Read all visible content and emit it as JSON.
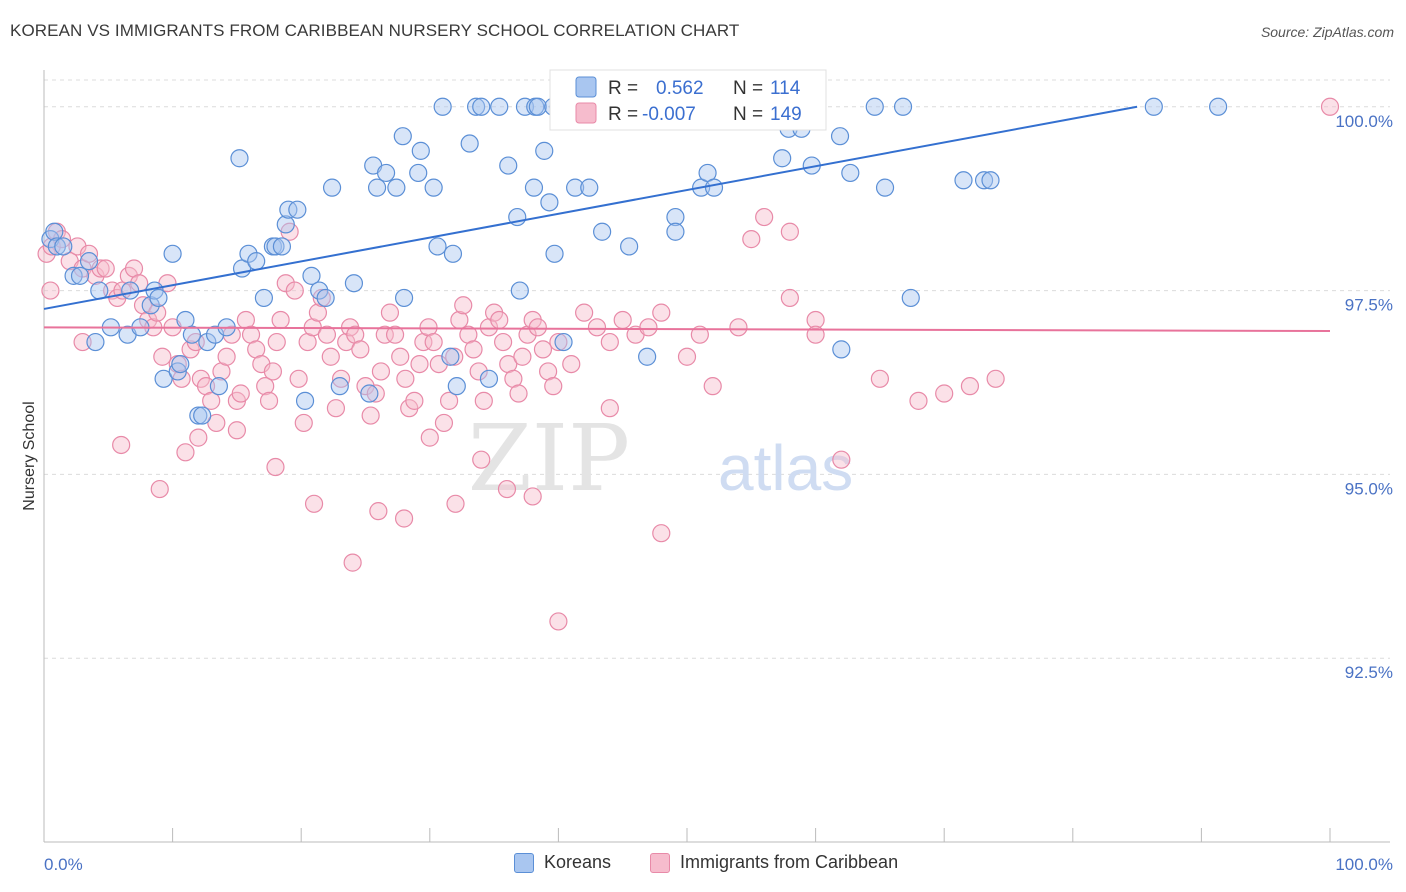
{
  "title": "KOREAN VS IMMIGRANTS FROM CARIBBEAN NURSERY SCHOOL CORRELATION CHART",
  "source": "Source: ZipAtlas.com",
  "watermark": {
    "zip": "ZIP",
    "atlas": "atlas"
  },
  "colors": {
    "blue_fill": "#a9c6f0",
    "blue_stroke": "#5b8fd6",
    "blue_line": "#3470d0",
    "pink_fill": "#f6bccd",
    "pink_stroke": "#e88aa8",
    "pink_line": "#e8739b",
    "tick_text": "#4a72c4",
    "grid": "#dcdcdc"
  },
  "legend_stats": {
    "r_label": "R =",
    "n_label": "N =",
    "koreans": {
      "r": "0.562",
      "n": "114"
    },
    "caribbean": {
      "r": "-0.007",
      "n": "149"
    }
  },
  "chart_data": {
    "type": "scatter",
    "xlabel": "",
    "ylabel": "Nursery School",
    "xlim": [
      0,
      100
    ],
    "ylim": [
      90.0,
      100.5
    ],
    "x_tick_labels": [
      "0.0%",
      "100.0%"
    ],
    "y_ticks": [
      92.5,
      95.0,
      97.5,
      100.0
    ],
    "y_tick_labels": [
      "92.5%",
      "95.0%",
      "97.5%",
      "100.0%"
    ],
    "grid": true,
    "legend_position": "bottom",
    "series": [
      {
        "name": "Koreans",
        "trend": {
          "x": [
            0,
            85
          ],
          "y": [
            97.25,
            100.0
          ]
        },
        "points": [
          [
            0.5,
            98.2
          ],
          [
            0.8,
            98.3
          ],
          [
            1.0,
            98.1
          ],
          [
            1.5,
            98.1
          ],
          [
            2.3,
            97.7
          ],
          [
            2.8,
            97.7
          ],
          [
            3.5,
            97.9
          ],
          [
            4.0,
            96.8
          ],
          [
            4.3,
            97.5
          ],
          [
            5.2,
            97.0
          ],
          [
            6.5,
            96.9
          ],
          [
            6.7,
            97.5
          ],
          [
            7.5,
            97.0
          ],
          [
            8.3,
            97.3
          ],
          [
            8.6,
            97.5
          ],
          [
            8.9,
            97.4
          ],
          [
            9.3,
            96.3
          ],
          [
            10.0,
            98.0
          ],
          [
            10.4,
            96.4
          ],
          [
            10.6,
            96.5
          ],
          [
            11.0,
            97.1
          ],
          [
            11.5,
            96.9
          ],
          [
            12.0,
            95.8
          ],
          [
            12.3,
            95.8
          ],
          [
            12.7,
            96.8
          ],
          [
            13.3,
            96.9
          ],
          [
            13.6,
            96.2
          ],
          [
            14.2,
            97.0
          ],
          [
            15.2,
            99.3
          ],
          [
            15.4,
            97.8
          ],
          [
            15.9,
            98.0
          ],
          [
            16.5,
            97.9
          ],
          [
            17.1,
            97.4
          ],
          [
            17.8,
            98.1
          ],
          [
            18.0,
            98.1
          ],
          [
            18.5,
            98.1
          ],
          [
            18.8,
            98.4
          ],
          [
            19.0,
            98.6
          ],
          [
            19.7,
            98.6
          ],
          [
            20.3,
            96.0
          ],
          [
            20.8,
            97.7
          ],
          [
            21.4,
            97.5
          ],
          [
            21.9,
            97.4
          ],
          [
            22.4,
            98.9
          ],
          [
            23.0,
            96.2
          ],
          [
            24.1,
            97.6
          ],
          [
            25.3,
            96.1
          ],
          [
            25.6,
            99.2
          ],
          [
            25.9,
            98.9
          ],
          [
            26.6,
            99.1
          ],
          [
            27.4,
            98.9
          ],
          [
            27.9,
            99.6
          ],
          [
            28.0,
            97.4
          ],
          [
            29.1,
            99.1
          ],
          [
            29.3,
            99.4
          ],
          [
            30.3,
            98.9
          ],
          [
            30.6,
            98.1
          ],
          [
            31.6,
            96.6
          ],
          [
            31.8,
            98.0
          ],
          [
            32.1,
            96.2
          ],
          [
            31.0,
            100.0
          ],
          [
            33.1,
            99.5
          ],
          [
            33.6,
            100.0
          ],
          [
            34.0,
            100.0
          ],
          [
            34.6,
            96.3
          ],
          [
            35.4,
            100.0
          ],
          [
            36.1,
            99.2
          ],
          [
            36.8,
            98.5
          ],
          [
            37.0,
            97.5
          ],
          [
            37.4,
            100.0
          ],
          [
            38.1,
            98.9
          ],
          [
            38.2,
            100.0
          ],
          [
            38.4,
            100.0
          ],
          [
            38.9,
            99.4
          ],
          [
            39.3,
            98.7
          ],
          [
            39.6,
            100.0
          ],
          [
            39.7,
            98.0
          ],
          [
            40.0,
            100.0
          ],
          [
            40.3,
            100.0
          ],
          [
            40.4,
            96.8
          ],
          [
            41.3,
            98.9
          ],
          [
            42.4,
            98.9
          ],
          [
            43.4,
            98.3
          ],
          [
            45.5,
            98.1
          ],
          [
            46.9,
            96.6
          ],
          [
            47.4,
            100.0
          ],
          [
            48.2,
            100.0
          ],
          [
            49.1,
            98.5
          ],
          [
            49.1,
            98.3
          ],
          [
            50.4,
            99.9
          ],
          [
            51.1,
            98.9
          ],
          [
            51.6,
            99.1
          ],
          [
            52.1,
            98.9
          ],
          [
            53.3,
            100.0
          ],
          [
            54.3,
            100.0
          ],
          [
            55.8,
            100.0
          ],
          [
            57.4,
            99.3
          ],
          [
            57.7,
            100.0
          ],
          [
            57.9,
            99.7
          ],
          [
            58.3,
            100.0
          ],
          [
            58.9,
            99.7
          ],
          [
            59.7,
            99.2
          ],
          [
            61.9,
            99.6
          ],
          [
            62.0,
            96.7
          ],
          [
            62.7,
            99.1
          ],
          [
            64.6,
            100.0
          ],
          [
            65.4,
            98.9
          ],
          [
            66.8,
            100.0
          ],
          [
            67.4,
            97.4
          ],
          [
            71.5,
            99.0
          ],
          [
            73.1,
            99.0
          ],
          [
            73.6,
            99.0
          ],
          [
            86.3,
            100.0
          ],
          [
            91.3,
            100.0
          ]
        ]
      },
      {
        "name": "Immigrants from Caribbean",
        "trend": {
          "x": [
            0,
            100
          ],
          "y": [
            97.0,
            96.95
          ]
        },
        "points": [
          [
            0.2,
            98.0
          ],
          [
            0.6,
            98.1
          ],
          [
            1.0,
            98.3
          ],
          [
            1.4,
            98.2
          ],
          [
            2.0,
            97.9
          ],
          [
            2.6,
            98.1
          ],
          [
            3.0,
            97.8
          ],
          [
            3.5,
            98.0
          ],
          [
            4.0,
            97.7
          ],
          [
            4.4,
            97.8
          ],
          [
            4.8,
            97.8
          ],
          [
            5.3,
            97.5
          ],
          [
            5.7,
            97.4
          ],
          [
            6.1,
            97.5
          ],
          [
            6.6,
            97.7
          ],
          [
            7.0,
            97.8
          ],
          [
            7.4,
            97.6
          ],
          [
            7.7,
            97.3
          ],
          [
            8.1,
            97.1
          ],
          [
            8.5,
            97.0
          ],
          [
            8.8,
            97.2
          ],
          [
            9.2,
            96.6
          ],
          [
            9.6,
            97.6
          ],
          [
            10.0,
            97.0
          ],
          [
            10.4,
            96.5
          ],
          [
            10.7,
            96.3
          ],
          [
            11.0,
            95.3
          ],
          [
            11.4,
            96.7
          ],
          [
            11.8,
            96.8
          ],
          [
            12.2,
            96.3
          ],
          [
            12.6,
            96.2
          ],
          [
            13.0,
            96.0
          ],
          [
            13.4,
            95.7
          ],
          [
            13.8,
            96.4
          ],
          [
            14.2,
            96.6
          ],
          [
            14.6,
            96.9
          ],
          [
            15.0,
            96.0
          ],
          [
            15.3,
            96.1
          ],
          [
            15.7,
            97.1
          ],
          [
            16.1,
            96.9
          ],
          [
            16.5,
            96.7
          ],
          [
            16.9,
            96.5
          ],
          [
            17.2,
            96.2
          ],
          [
            17.5,
            96.0
          ],
          [
            17.8,
            96.4
          ],
          [
            18.1,
            96.8
          ],
          [
            18.4,
            97.1
          ],
          [
            18.8,
            97.6
          ],
          [
            19.1,
            98.3
          ],
          [
            19.5,
            97.5
          ],
          [
            19.8,
            96.3
          ],
          [
            20.2,
            95.7
          ],
          [
            20.5,
            96.8
          ],
          [
            20.9,
            97.0
          ],
          [
            21.3,
            97.2
          ],
          [
            21.6,
            97.4
          ],
          [
            22.0,
            96.9
          ],
          [
            22.3,
            96.6
          ],
          [
            22.7,
            95.9
          ],
          [
            23.1,
            96.3
          ],
          [
            23.5,
            96.8
          ],
          [
            23.8,
            97.0
          ],
          [
            24.2,
            96.9
          ],
          [
            24.6,
            96.7
          ],
          [
            25.0,
            96.2
          ],
          [
            25.4,
            95.8
          ],
          [
            25.8,
            96.1
          ],
          [
            26.2,
            96.4
          ],
          [
            26.5,
            96.9
          ],
          [
            26.9,
            97.2
          ],
          [
            27.3,
            96.9
          ],
          [
            27.7,
            96.6
          ],
          [
            28.1,
            96.3
          ],
          [
            28.4,
            95.9
          ],
          [
            28.8,
            96.0
          ],
          [
            29.2,
            96.5
          ],
          [
            29.5,
            96.8
          ],
          [
            29.9,
            97.0
          ],
          [
            30.3,
            96.8
          ],
          [
            30.7,
            96.5
          ],
          [
            31.1,
            95.7
          ],
          [
            31.5,
            96.0
          ],
          [
            31.9,
            96.6
          ],
          [
            32.3,
            97.1
          ],
          [
            32.6,
            97.3
          ],
          [
            33.0,
            96.9
          ],
          [
            33.4,
            96.7
          ],
          [
            33.8,
            96.4
          ],
          [
            34.2,
            96.0
          ],
          [
            34.6,
            97.0
          ],
          [
            35.0,
            97.2
          ],
          [
            35.4,
            97.1
          ],
          [
            35.7,
            96.8
          ],
          [
            36.1,
            96.5
          ],
          [
            36.5,
            96.3
          ],
          [
            36.9,
            96.1
          ],
          [
            37.2,
            96.6
          ],
          [
            37.6,
            96.9
          ],
          [
            38.0,
            97.1
          ],
          [
            38.4,
            97.0
          ],
          [
            38.8,
            96.7
          ],
          [
            39.2,
            96.4
          ],
          [
            39.6,
            96.2
          ],
          [
            40.0,
            96.8
          ],
          [
            41.0,
            96.5
          ],
          [
            42.0,
            97.2
          ],
          [
            43.0,
            97.0
          ],
          [
            44.0,
            96.8
          ],
          [
            45.0,
            97.1
          ],
          [
            46.0,
            96.9
          ],
          [
            47.0,
            97.0
          ],
          [
            48.0,
            97.2
          ],
          [
            50.0,
            96.6
          ],
          [
            52.0,
            96.2
          ],
          [
            54.0,
            97.0
          ],
          [
            56.0,
            98.5
          ],
          [
            58.0,
            97.4
          ],
          [
            60.0,
            97.1
          ],
          [
            62.0,
            95.2
          ],
          [
            65.0,
            96.3
          ],
          [
            68.0,
            96.0
          ],
          [
            70.0,
            96.1
          ],
          [
            72.0,
            96.2
          ],
          [
            74.0,
            96.3
          ],
          [
            0.5,
            97.5
          ],
          [
            3.0,
            96.8
          ],
          [
            6.0,
            95.4
          ],
          [
            9.0,
            94.8
          ],
          [
            12.0,
            95.5
          ],
          [
            15.0,
            95.6
          ],
          [
            18.0,
            95.1
          ],
          [
            21.0,
            94.6
          ],
          [
            24.0,
            93.8
          ],
          [
            26.0,
            94.5
          ],
          [
            28.0,
            94.4
          ],
          [
            30.0,
            95.5
          ],
          [
            32.0,
            94.6
          ],
          [
            34.0,
            95.2
          ],
          [
            36.0,
            94.8
          ],
          [
            38.0,
            94.7
          ],
          [
            40.0,
            93.0
          ],
          [
            44.0,
            95.9
          ],
          [
            48.0,
            94.2
          ],
          [
            51.0,
            96.9
          ],
          [
            55.0,
            98.2
          ],
          [
            58.0,
            98.3
          ],
          [
            60.0,
            96.9
          ],
          [
            100.0,
            100.0
          ]
        ]
      }
    ]
  },
  "bottom_legend": [
    {
      "label": "Koreans"
    },
    {
      "label": "Immigrants from Caribbean"
    }
  ]
}
